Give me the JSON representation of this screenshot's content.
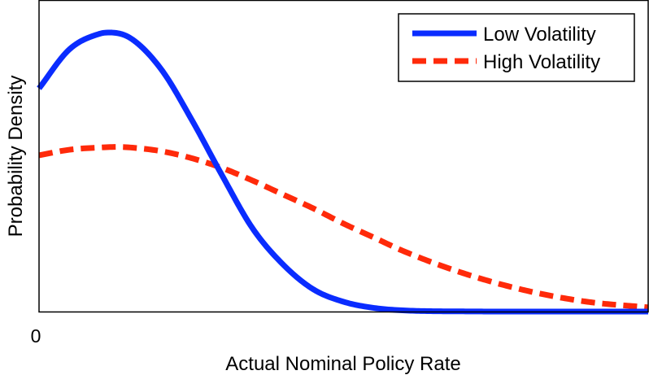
{
  "chart_data": {
    "type": "line",
    "title": "",
    "xlabel": "Actual Nominal Policy Rate",
    "ylabel": "Probability Density",
    "x_tick_labels": [
      "0"
    ],
    "xlim": [
      0,
      10
    ],
    "ylim": [
      0,
      1
    ],
    "grid": false,
    "legend_position": "top-right",
    "series": [
      {
        "name": "Low Volatility",
        "color": "#0a2cff",
        "style": "solid",
        "x": [
          0,
          0.5,
          1.0,
          1.16,
          1.5,
          2.0,
          2.5,
          3.0,
          3.5,
          4.0,
          4.5,
          5.0,
          5.5,
          6.0,
          7.0,
          8.0,
          9.0,
          10.0
        ],
        "y": [
          0.8,
          0.94,
          0.996,
          1.0,
          0.98,
          0.87,
          0.69,
          0.49,
          0.3,
          0.17,
          0.08,
          0.035,
          0.013,
          0.004,
          0.0005,
          0.0,
          0.0,
          0.0
        ]
      },
      {
        "name": "High Volatility",
        "color": "#ff2a0a",
        "style": "dashed",
        "x": [
          0,
          0.5,
          1.0,
          1.3,
          1.5,
          2.0,
          2.5,
          3.0,
          3.5,
          4.0,
          4.5,
          5.0,
          5.5,
          6.0,
          7.0,
          8.0,
          9.0,
          10.0
        ],
        "y": [
          0.56,
          0.58,
          0.588,
          0.59,
          0.588,
          0.575,
          0.55,
          0.515,
          0.47,
          0.42,
          0.37,
          0.315,
          0.265,
          0.215,
          0.135,
          0.075,
          0.035,
          0.015
        ]
      }
    ]
  }
}
